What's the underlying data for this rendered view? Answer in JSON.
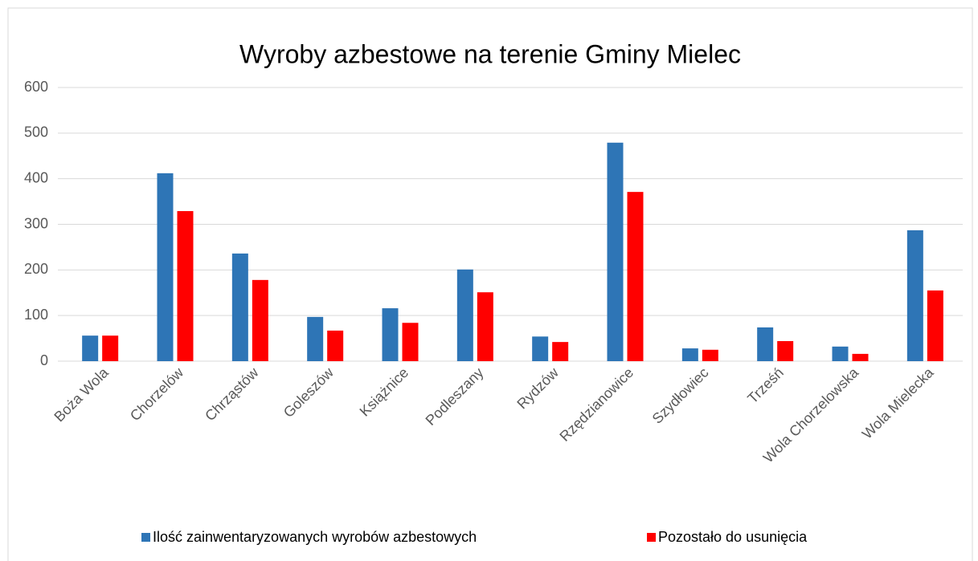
{
  "chart_data": {
    "type": "bar",
    "title": "Wyroby azbestowe na terenie Gminy Mielec",
    "categories": [
      "Boża Wola",
      "Chorzelów",
      "Chrząstów",
      "Goleszów",
      "Książnice",
      "Podleszany",
      "Rydzów",
      "Rzędzianowice",
      "Szydłowiec",
      "Trześń",
      "Wola Chorzelowska",
      "Wola Mielecka"
    ],
    "series": [
      {
        "name": "Ilość zainwentaryzowanych wyrobów azbestowych",
        "color": "#2e75b6",
        "values": [
          56,
          412,
          236,
          97,
          116,
          201,
          54,
          479,
          28,
          74,
          32,
          287
        ]
      },
      {
        "name": "Pozostało do usunięcia",
        "color": "#ff0000",
        "values": [
          56,
          329,
          178,
          67,
          84,
          151,
          42,
          371,
          25,
          44,
          16,
          155
        ]
      }
    ],
    "ylim": [
      0,
      600
    ],
    "yticks": [
      0,
      100,
      200,
      300,
      400,
      500,
      600
    ],
    "grid": true,
    "legend": "bottom"
  }
}
